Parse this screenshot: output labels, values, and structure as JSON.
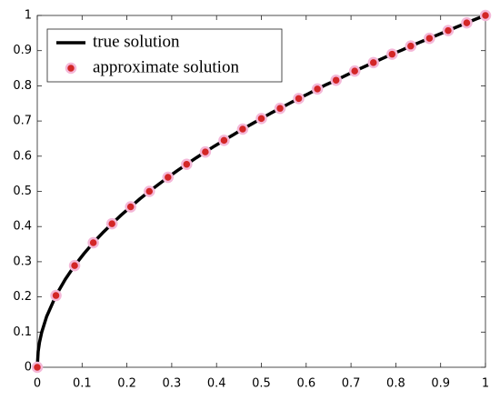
{
  "chart_data": {
    "type": "line",
    "x": [
      0,
      0.002,
      0.005,
      0.01,
      0.0208,
      0.0417,
      0.0625,
      0.0833,
      0.1042,
      0.125,
      0.1458,
      0.1667,
      0.1875,
      0.2083,
      0.2292,
      0.25,
      0.2708,
      0.2917,
      0.3125,
      0.3333,
      0.3542,
      0.375,
      0.3958,
      0.4167,
      0.4375,
      0.4583,
      0.4792,
      0.5,
      0.5208,
      0.5417,
      0.5625,
      0.5833,
      0.6042,
      0.625,
      0.6458,
      0.6667,
      0.6875,
      0.7083,
      0.7292,
      0.75,
      0.7708,
      0.7917,
      0.8125,
      0.8333,
      0.8542,
      0.875,
      0.8958,
      0.9167,
      0.9375,
      0.9583,
      0.9792,
      1
    ],
    "series": [
      {
        "name": "true solution",
        "color": "#000000",
        "style": "line",
        "values": [
          0,
          0.045,
          0.071,
          0.1,
          0.144,
          0.204,
          0.25,
          0.289,
          0.323,
          0.354,
          0.382,
          0.408,
          0.433,
          0.456,
          0.479,
          0.5,
          0.52,
          0.54,
          0.559,
          0.577,
          0.595,
          0.612,
          0.629,
          0.645,
          0.661,
          0.677,
          0.692,
          0.707,
          0.722,
          0.736,
          0.75,
          0.764,
          0.777,
          0.791,
          0.804,
          0.816,
          0.829,
          0.842,
          0.854,
          0.866,
          0.878,
          0.89,
          0.901,
          0.913,
          0.924,
          0.935,
          0.946,
          0.957,
          0.968,
          0.979,
          0.99,
          1
        ]
      },
      {
        "name": "approximate solution",
        "color": "#d32626",
        "style": "marker",
        "values": [
          0,
          null,
          null,
          null,
          null,
          0.204,
          null,
          0.289,
          null,
          0.354,
          null,
          0.408,
          null,
          0.456,
          null,
          0.5,
          null,
          0.54,
          null,
          0.577,
          null,
          0.612,
          null,
          0.645,
          null,
          0.677,
          null,
          0.707,
          null,
          0.736,
          null,
          0.764,
          null,
          0.791,
          null,
          0.816,
          null,
          0.842,
          null,
          0.866,
          null,
          0.89,
          null,
          0.913,
          null,
          0.935,
          null,
          0.957,
          null,
          0.979,
          null,
          1
        ]
      }
    ],
    "xlim": [
      0,
      1
    ],
    "ylim": [
      0,
      1
    ],
    "xticks": [
      0,
      0.1,
      0.2,
      0.3,
      0.4,
      0.5,
      0.6,
      0.7,
      0.8,
      0.9,
      1
    ],
    "yticks": [
      0,
      0.1,
      0.2,
      0.3,
      0.4,
      0.5,
      0.6,
      0.7,
      0.8,
      0.9,
      1
    ],
    "grid": false,
    "legend": "upper-left"
  }
}
